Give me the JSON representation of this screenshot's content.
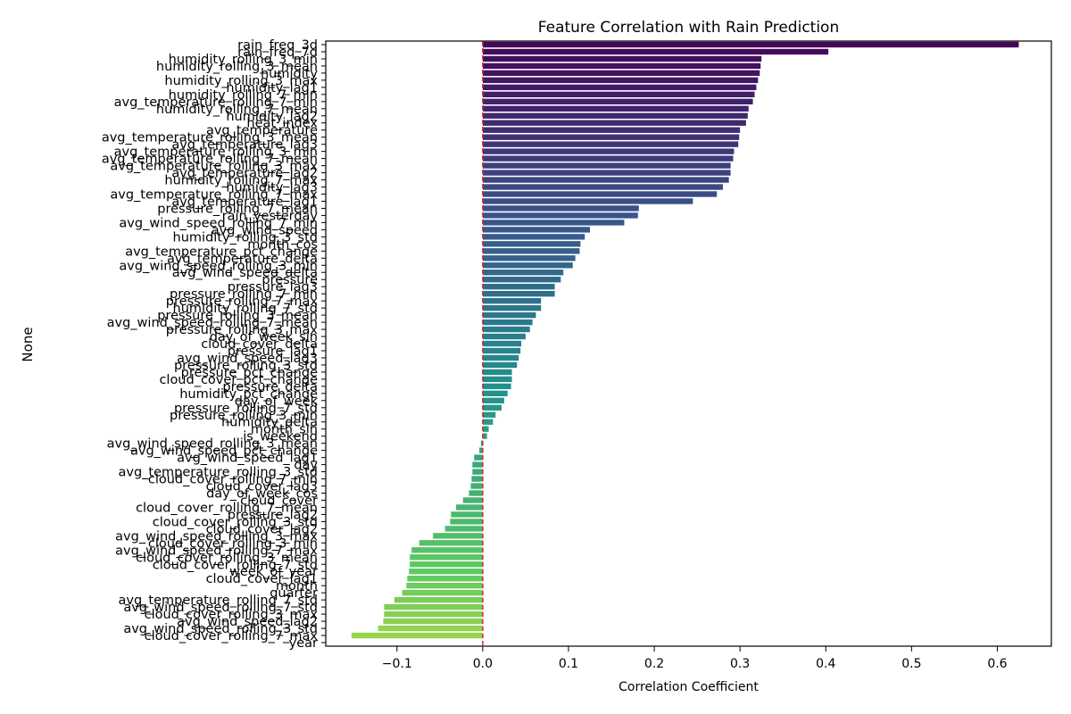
{
  "chart_data": {
    "type": "bar",
    "orientation": "horizontal",
    "title": "Feature Correlation with Rain Prediction",
    "xlabel": "Correlation Coefficient",
    "ylabel": "None",
    "xlim": [
      -0.183,
      0.663
    ],
    "x_ticks": [
      -0.1,
      0.0,
      0.1,
      0.2,
      0.3,
      0.4,
      0.5,
      0.6
    ],
    "x_tick_labels": [
      "−0.1",
      "0.0",
      "0.1",
      "0.2",
      "0.3",
      "0.4",
      "0.5",
      "0.6"
    ],
    "grid": false,
    "colormap": "viridis",
    "reference_line": {
      "x": 0.0,
      "color": "#d62728",
      "style": "dashed"
    },
    "categories": [
      "rain_freq_3d",
      "rain_freq_7d",
      "humidity_rolling_3_min",
      "humidity_rolling_3_mean",
      "humidity",
      "humidity_rolling_3_max",
      "humidity_lag1",
      "humidity_rolling_7_min",
      "avg_temperature_rolling_7_min",
      "humidity_rolling_7_mean",
      "humidity_lag2",
      "heat_index",
      "avg_temperature",
      "avg_temperature_rolling_3_mean",
      "avg_temperature_lag3",
      "avg_temperature_rolling_3_min",
      "avg_temperature_rolling_7_mean",
      "avg_temperature_rolling_3_max",
      "avg_temperature_lag2",
      "humidity_rolling_7_max",
      "humidity_lag3",
      "avg_temperature_rolling_7_max",
      "avg_temperature_lag1",
      "pressure_rolling_7_mean",
      "rain_yesterday",
      "avg_wind_speed_rolling_7_min",
      "avg_wind_speed",
      "humidity_rolling_3_std",
      "month_cos",
      "avg_temperature_pct_change",
      "avg_temperature_delta",
      "avg_wind_speed_rolling_3_min",
      "avg_wind_speed_delta",
      "pressure",
      "pressure_lag3",
      "pressure_rolling_7_min",
      "pressure_rolling_7_max",
      "humidity_rolling_7_std",
      "pressure_rolling_3_mean",
      "avg_wind_speed_rolling_7_mean",
      "pressure_rolling_3_max",
      "day_of_week_sin",
      "cloud_cover_delta",
      "pressure_lag1",
      "avg_wind_speed_lag3",
      "pressure_rolling_3_std",
      "pressure_pct_change",
      "cloud_cover_pct_change",
      "pressure_delta",
      "humidity_pct_change",
      "day_of_week",
      "pressure_rolling_7_std",
      "pressure_rolling_3_min",
      "humidity_delta",
      "month_sin",
      "is_weekend",
      "avg_wind_speed_rolling_3_mean",
      "avg_wind_speed_pct_change",
      "avg_wind_speed_lag1",
      "day",
      "avg_temperature_rolling_3_std",
      "cloud_cover_rolling_7_min",
      "cloud_cover_lag3",
      "day_of_week_cos",
      "cloud_cover",
      "cloud_cover_rolling_7_mean",
      "pressure_lag2",
      "cloud_cover_rolling_3_std",
      "cloud_cover_lag2",
      "avg_wind_speed_rolling_3_max",
      "cloud_cover_rolling_3_min",
      "avg_wind_speed_rolling_7_max",
      "cloud_cover_rolling_3_mean",
      "cloud_cover_rolling_7_std",
      "week_of_year",
      "cloud_cover_lag1",
      "month",
      "quarter",
      "avg_temperature_rolling_7_std",
      "avg_wind_speed_rolling_7_std",
      "cloud_cover_rolling_3_max",
      "avg_wind_speed_lag2",
      "avg_wind_speed_rolling_3_std",
      "cloud_cover_rolling_7_max",
      "year"
    ],
    "values": [
      0.625,
      0.403,
      0.325,
      0.324,
      0.323,
      0.321,
      0.319,
      0.317,
      0.315,
      0.31,
      0.309,
      0.307,
      0.3,
      0.299,
      0.298,
      0.293,
      0.292,
      0.289,
      0.289,
      0.287,
      0.28,
      0.273,
      0.245,
      0.182,
      0.181,
      0.165,
      0.125,
      0.119,
      0.114,
      0.113,
      0.108,
      0.105,
      0.094,
      0.091,
      0.084,
      0.084,
      0.068,
      0.068,
      0.062,
      0.058,
      0.055,
      0.05,
      0.045,
      0.044,
      0.042,
      0.04,
      0.034,
      0.034,
      0.033,
      0.029,
      0.025,
      0.022,
      0.015,
      0.012,
      0.007,
      0.005,
      -0.002,
      -0.004,
      -0.01,
      -0.012,
      -0.012,
      -0.013,
      -0.014,
      -0.016,
      -0.023,
      -0.031,
      -0.037,
      -0.038,
      -0.044,
      -0.058,
      -0.074,
      -0.083,
      -0.085,
      -0.085,
      -0.086,
      -0.088,
      -0.089,
      -0.094,
      -0.103,
      -0.115,
      -0.115,
      -0.116,
      -0.122,
      -0.153,
      0.0
    ]
  }
}
